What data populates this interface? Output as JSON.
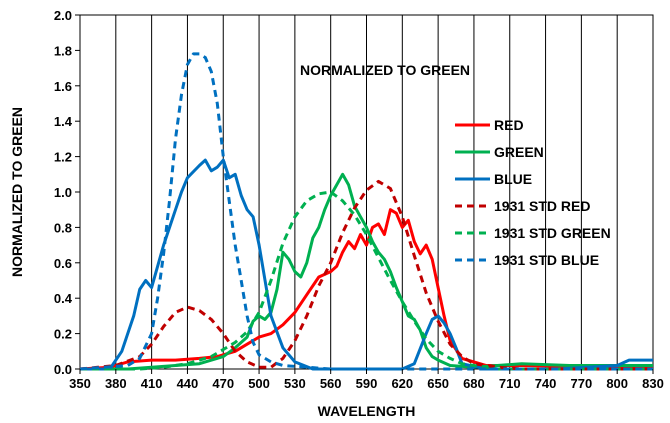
{
  "chart_data": {
    "type": "line",
    "annotation": "NORMALIZED TO GREEN",
    "xlabel": "WAVELENGTH",
    "ylabel": "NORMALIZED TO GREEN",
    "xlim": [
      350,
      830
    ],
    "ylim": [
      0,
      2.0
    ],
    "x_ticks": [
      350,
      380,
      410,
      440,
      470,
      500,
      530,
      560,
      590,
      620,
      650,
      680,
      710,
      740,
      770,
      800,
      830
    ],
    "x_tick_labels": [
      "350",
      "380",
      "410",
      "440",
      "470",
      "500",
      "530",
      "560",
      "590",
      "620",
      "650",
      "680",
      "710",
      "740",
      "770",
      "800",
      "830"
    ],
    "y_ticks": [
      0,
      0.2,
      0.4,
      0.6,
      0.8,
      1.0,
      1.2,
      1.4,
      1.6,
      1.8,
      2.0
    ],
    "y_tick_labels": [
      "0.0",
      "0.2",
      "0.4",
      "0.6",
      "0.8",
      "1.0",
      "1.2",
      "1.4",
      "1.6",
      "1.8",
      "2.0"
    ],
    "grid": "vertical",
    "legend_position": "right",
    "series": [
      {
        "name": "RED",
        "color": "#ff0000",
        "dash": "solid",
        "points": [
          [
            350,
            0
          ],
          [
            375,
            0.01
          ],
          [
            390,
            0.04
          ],
          [
            410,
            0.05
          ],
          [
            430,
            0.05
          ],
          [
            450,
            0.06
          ],
          [
            465,
            0.07
          ],
          [
            480,
            0.1
          ],
          [
            490,
            0.14
          ],
          [
            500,
            0.18
          ],
          [
            510,
            0.2
          ],
          [
            520,
            0.25
          ],
          [
            530,
            0.32
          ],
          [
            540,
            0.42
          ],
          [
            550,
            0.52
          ],
          [
            560,
            0.55
          ],
          [
            565,
            0.58
          ],
          [
            570,
            0.66
          ],
          [
            575,
            0.72
          ],
          [
            580,
            0.68
          ],
          [
            585,
            0.76
          ],
          [
            590,
            0.7
          ],
          [
            595,
            0.8
          ],
          [
            600,
            0.82
          ],
          [
            605,
            0.76
          ],
          [
            610,
            0.9
          ],
          [
            615,
            0.88
          ],
          [
            620,
            0.8
          ],
          [
            625,
            0.84
          ],
          [
            630,
            0.72
          ],
          [
            635,
            0.65
          ],
          [
            640,
            0.7
          ],
          [
            645,
            0.62
          ],
          [
            650,
            0.46
          ],
          [
            655,
            0.3
          ],
          [
            660,
            0.16
          ],
          [
            670,
            0.06
          ],
          [
            690,
            0.02
          ],
          [
            720,
            0.02
          ],
          [
            800,
            0.01
          ],
          [
            830,
            0.01
          ]
        ]
      },
      {
        "name": "GREEN",
        "color": "#00b050",
        "dash": "solid",
        "points": [
          [
            350,
            0
          ],
          [
            390,
            0
          ],
          [
            410,
            0.01
          ],
          [
            430,
            0.02
          ],
          [
            450,
            0.03
          ],
          [
            470,
            0.07
          ],
          [
            480,
            0.12
          ],
          [
            490,
            0.18
          ],
          [
            495,
            0.27
          ],
          [
            500,
            0.3
          ],
          [
            505,
            0.28
          ],
          [
            510,
            0.32
          ],
          [
            515,
            0.45
          ],
          [
            520,
            0.66
          ],
          [
            525,
            0.62
          ],
          [
            530,
            0.55
          ],
          [
            535,
            0.52
          ],
          [
            540,
            0.6
          ],
          [
            545,
            0.74
          ],
          [
            550,
            0.8
          ],
          [
            555,
            0.9
          ],
          [
            560,
            0.98
          ],
          [
            565,
            1.04
          ],
          [
            570,
            1.1
          ],
          [
            575,
            1.04
          ],
          [
            580,
            0.92
          ],
          [
            585,
            0.86
          ],
          [
            590,
            0.8
          ],
          [
            595,
            0.72
          ],
          [
            600,
            0.66
          ],
          [
            605,
            0.62
          ],
          [
            610,
            0.55
          ],
          [
            615,
            0.46
          ],
          [
            620,
            0.38
          ],
          [
            625,
            0.3
          ],
          [
            630,
            0.28
          ],
          [
            635,
            0.22
          ],
          [
            640,
            0.12
          ],
          [
            645,
            0.07
          ],
          [
            650,
            0.05
          ],
          [
            660,
            0.02
          ],
          [
            680,
            0.01
          ],
          [
            720,
            0.03
          ],
          [
            760,
            0.02
          ],
          [
            830,
            0.02
          ]
        ]
      },
      {
        "name": "BLUE",
        "color": "#0070c0",
        "dash": "solid",
        "points": [
          [
            350,
            0
          ],
          [
            375,
            0
          ],
          [
            385,
            0.1
          ],
          [
            395,
            0.3
          ],
          [
            400,
            0.45
          ],
          [
            405,
            0.5
          ],
          [
            410,
            0.46
          ],
          [
            420,
            0.7
          ],
          [
            430,
            0.9
          ],
          [
            435,
            1.0
          ],
          [
            440,
            1.08
          ],
          [
            450,
            1.15
          ],
          [
            455,
            1.18
          ],
          [
            460,
            1.12
          ],
          [
            465,
            1.14
          ],
          [
            470,
            1.18
          ],
          [
            475,
            1.08
          ],
          [
            480,
            1.1
          ],
          [
            485,
            0.98
          ],
          [
            490,
            0.9
          ],
          [
            495,
            0.86
          ],
          [
            500,
            0.7
          ],
          [
            510,
            0.3
          ],
          [
            520,
            0.12
          ],
          [
            530,
            0.04
          ],
          [
            545,
            0
          ],
          [
            560,
            0
          ],
          [
            600,
            0
          ],
          [
            620,
            0
          ],
          [
            630,
            0.03
          ],
          [
            640,
            0.2
          ],
          [
            645,
            0.28
          ],
          [
            650,
            0.3
          ],
          [
            655,
            0.26
          ],
          [
            660,
            0.2
          ],
          [
            665,
            0.12
          ],
          [
            670,
            0.03
          ],
          [
            690,
            0
          ],
          [
            750,
            0
          ],
          [
            800,
            0.02
          ],
          [
            810,
            0.05
          ],
          [
            830,
            0.05
          ]
        ]
      },
      {
        "name": "1931 STD RED",
        "color": "#c00000",
        "dash": "dashed",
        "points": [
          [
            350,
            0
          ],
          [
            380,
            0.02
          ],
          [
            400,
            0.07
          ],
          [
            410,
            0.14
          ],
          [
            420,
            0.24
          ],
          [
            430,
            0.32
          ],
          [
            440,
            0.35
          ],
          [
            450,
            0.33
          ],
          [
            460,
            0.28
          ],
          [
            470,
            0.2
          ],
          [
            480,
            0.1
          ],
          [
            490,
            0.04
          ],
          [
            500,
            0.01
          ],
          [
            510,
            0.01
          ],
          [
            520,
            0.06
          ],
          [
            530,
            0.16
          ],
          [
            540,
            0.3
          ],
          [
            550,
            0.47
          ],
          [
            560,
            0.6
          ],
          [
            570,
            0.77
          ],
          [
            580,
            0.91
          ],
          [
            590,
            1.01
          ],
          [
            600,
            1.06
          ],
          [
            610,
            1.02
          ],
          [
            620,
            0.86
          ],
          [
            630,
            0.64
          ],
          [
            640,
            0.43
          ],
          [
            650,
            0.27
          ],
          [
            660,
            0.14
          ],
          [
            670,
            0.07
          ],
          [
            680,
            0.03
          ],
          [
            700,
            0.01
          ],
          [
            720,
            0
          ],
          [
            830,
            0
          ]
        ]
      },
      {
        "name": "1931 STD GREEN",
        "color": "#00b050",
        "dash": "dashed",
        "points": [
          [
            350,
            0
          ],
          [
            400,
            0
          ],
          [
            420,
            0.01
          ],
          [
            440,
            0.03
          ],
          [
            460,
            0.07
          ],
          [
            480,
            0.15
          ],
          [
            490,
            0.21
          ],
          [
            500,
            0.32
          ],
          [
            510,
            0.5
          ],
          [
            520,
            0.71
          ],
          [
            530,
            0.86
          ],
          [
            540,
            0.95
          ],
          [
            550,
            0.99
          ],
          [
            560,
            1.0
          ],
          [
            570,
            0.95
          ],
          [
            580,
            0.87
          ],
          [
            590,
            0.76
          ],
          [
            600,
            0.63
          ],
          [
            610,
            0.5
          ],
          [
            620,
            0.38
          ],
          [
            630,
            0.27
          ],
          [
            640,
            0.17
          ],
          [
            650,
            0.1
          ],
          [
            660,
            0.06
          ],
          [
            670,
            0.03
          ],
          [
            680,
            0.02
          ],
          [
            700,
            0
          ],
          [
            830,
            0
          ]
        ]
      },
      {
        "name": "1931 STD BLUE",
        "color": "#0070c0",
        "dash": "dashed",
        "points": [
          [
            350,
            0
          ],
          [
            390,
            0.02
          ],
          [
            400,
            0.06
          ],
          [
            410,
            0.2
          ],
          [
            415,
            0.4
          ],
          [
            420,
            0.65
          ],
          [
            425,
            0.95
          ],
          [
            430,
            1.3
          ],
          [
            435,
            1.55
          ],
          [
            440,
            1.72
          ],
          [
            445,
            1.78
          ],
          [
            450,
            1.78
          ],
          [
            455,
            1.76
          ],
          [
            460,
            1.68
          ],
          [
            465,
            1.5
          ],
          [
            470,
            1.2
          ],
          [
            475,
            0.95
          ],
          [
            480,
            0.7
          ],
          [
            485,
            0.5
          ],
          [
            490,
            0.3
          ],
          [
            495,
            0.15
          ],
          [
            500,
            0.08
          ],
          [
            510,
            0.04
          ],
          [
            520,
            0.02
          ],
          [
            540,
            0.01
          ],
          [
            560,
            0
          ],
          [
            830,
            0
          ]
        ]
      }
    ]
  }
}
